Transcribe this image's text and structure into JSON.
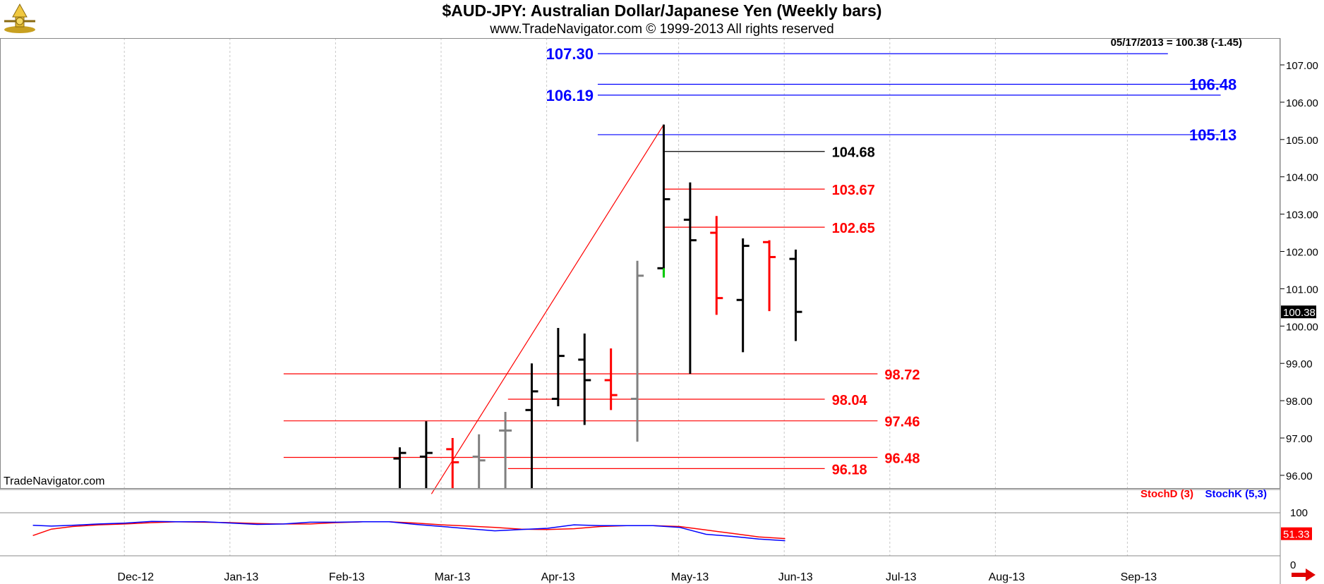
{
  "header": {
    "title": "$AUD-JPY:  Australian Dollar/Japanese Yen  (Weekly bars)",
    "subtitle": "www.TradeNavigator.com © 1999-2013 All rights reserved",
    "data_line": "05/17/2013 = 100.38 (-1.45)",
    "brand": "TradeNavigator.com"
  },
  "colors": {
    "up_bar": "#000000",
    "down_bar": "#ff0000",
    "neutral_bar": "#808080",
    "blue_level": "#0000ff",
    "red_level": "#ff0000",
    "black_level": "#000000",
    "stoch_d": "#ff0000",
    "stoch_k": "#0000ff",
    "grid": "#c8c8c8"
  },
  "chart_data": [
    {
      "type": "ohlc",
      "title": "$AUD-JPY:  Australian Dollar/Japanese Yen  (Weekly bars)",
      "ylim": [
        95.5,
        107.8
      ],
      "yticks": [
        "96.00",
        "97.00",
        "98.00",
        "99.00",
        "100.00",
        "101.00",
        "102.00",
        "103.00",
        "104.00",
        "105.00",
        "106.00",
        "107.00"
      ],
      "last_price": "100.38",
      "x_axis_labels": [
        {
          "label": "Dec-12",
          "week": 3
        },
        {
          "label": "Jan-13",
          "week": 7
        },
        {
          "label": "Feb-13",
          "week": 11
        },
        {
          "label": "Mar-13",
          "week": 15
        },
        {
          "label": "Apr-13",
          "week": 19
        },
        {
          "label": "May-13",
          "week": 24
        },
        {
          "label": "Jun-13",
          "week": 28
        },
        {
          "label": "Jul-13",
          "week": 32
        },
        {
          "label": "Aug-13",
          "week": 36
        },
        {
          "label": "Sep-13",
          "week": 41
        }
      ],
      "bars": [
        {
          "week": 12.9,
          "open": 96.45,
          "high": 96.75,
          "low": 95.5,
          "close": 96.6,
          "color": "up"
        },
        {
          "week": 13.9,
          "open": 96.5,
          "high": 97.45,
          "low": 95.5,
          "close": 96.6,
          "color": "up"
        },
        {
          "week": 14.9,
          "open": 96.7,
          "high": 97.0,
          "low": 95.5,
          "close": 96.35,
          "color": "down"
        },
        {
          "week": 15.9,
          "open": 96.5,
          "high": 97.1,
          "low": 95.5,
          "close": 96.4,
          "color": "neutral"
        },
        {
          "week": 16.9,
          "open": 97.2,
          "high": 97.7,
          "low": 95.5,
          "close": 97.2,
          "color": "neutral"
        },
        {
          "week": 17.9,
          "open": 97.75,
          "high": 99.0,
          "low": 95.5,
          "close": 98.25,
          "color": "up"
        },
        {
          "week": 18.9,
          "open": 98.05,
          "high": 99.95,
          "low": 97.85,
          "close": 99.2,
          "color": "up"
        },
        {
          "week": 19.9,
          "open": 99.1,
          "high": 99.8,
          "low": 97.35,
          "close": 98.55,
          "color": "up"
        },
        {
          "week": 20.9,
          "open": 98.55,
          "high": 99.4,
          "low": 97.75,
          "close": 98.15,
          "color": "down"
        },
        {
          "week": 21.9,
          "open": 98.05,
          "high": 101.75,
          "low": 96.9,
          "close": 101.35,
          "color": "neutral"
        },
        {
          "week": 22.9,
          "open": 101.55,
          "high": 105.4,
          "low": 101.35,
          "close": 103.4,
          "color": "up"
        },
        {
          "week": 23.9,
          "open": 102.85,
          "high": 103.85,
          "low": 98.72,
          "close": 102.3,
          "color": "up"
        },
        {
          "week": 24.9,
          "open": 102.5,
          "high": 102.95,
          "low": 100.3,
          "close": 100.75,
          "color": "down"
        },
        {
          "week": 25.9,
          "open": 100.7,
          "high": 102.35,
          "low": 99.3,
          "close": 102.15,
          "color": "up"
        },
        {
          "week": 26.9,
          "open": 102.25,
          "high": 102.3,
          "low": 100.4,
          "close": 101.85,
          "color": "down"
        },
        {
          "week": 27.9,
          "open": 101.8,
          "high": 102.05,
          "low": 99.6,
          "close": 100.38,
          "color": "up"
        }
      ],
      "trend_line": {
        "from": {
          "week": 14.1,
          "price": 95.5
        },
        "to": {
          "week": 22.9,
          "price": 105.4
        }
      },
      "levels": [
        {
          "label": "107.30",
          "price": 107.3,
          "color": "blue",
          "from_week": 20.4,
          "to_week": 42.0,
          "label_side": "left"
        },
        {
          "label": "106.48",
          "price": 106.48,
          "color": "blue",
          "from_week": 20.4,
          "to_week": 44.0,
          "label_side": "right"
        },
        {
          "label": "106.19",
          "price": 106.19,
          "color": "blue",
          "from_week": 20.4,
          "to_week": 44.0,
          "label_side": "left"
        },
        {
          "label": "105.13",
          "price": 105.13,
          "color": "blue",
          "from_week": 20.4,
          "to_week": 44.0,
          "label_side": "right"
        },
        {
          "label": "104.68",
          "price": 104.68,
          "color": "black",
          "from_week": 22.9,
          "to_week": 29.0,
          "label_side": "right"
        },
        {
          "label": "103.67",
          "price": 103.67,
          "color": "red",
          "from_week": 22.9,
          "to_week": 29.0,
          "label_side": "right"
        },
        {
          "label": "102.65",
          "price": 102.65,
          "color": "red",
          "from_week": 22.9,
          "to_week": 29.0,
          "label_side": "right"
        },
        {
          "label": "98.72",
          "price": 98.72,
          "color": "red",
          "from_week": 8.5,
          "to_week": 31.0,
          "label_side": "right"
        },
        {
          "label": "98.04",
          "price": 98.04,
          "color": "red",
          "from_week": 17.0,
          "to_week": 29.0,
          "label_side": "right"
        },
        {
          "label": "97.46",
          "price": 97.46,
          "color": "red",
          "from_week": 8.5,
          "to_week": 31.0,
          "label_side": "right"
        },
        {
          "label": "96.48",
          "price": 96.48,
          "color": "red",
          "from_week": 8.5,
          "to_week": 31.0,
          "label_side": "right"
        },
        {
          "label": "96.18",
          "price": 96.18,
          "color": "red",
          "from_week": 17.0,
          "to_week": 29.0,
          "label_side": "right"
        }
      ]
    },
    {
      "type": "line",
      "title": "",
      "ylim": [
        0,
        100
      ],
      "yticks": [
        "0",
        "100"
      ],
      "legend": [
        "StochD (3)",
        "StochK (5,3)"
      ],
      "x": [
        -1.0,
        -0.3,
        0.5,
        1.5,
        2.5,
        3.5,
        4.5,
        5.5,
        6.5,
        7.5,
        8.5,
        9.5,
        10.5,
        11.5,
        12.5,
        13.5,
        14.5,
        15.5,
        16.5,
        17.5,
        18.5,
        19.5,
        20.5,
        21.5,
        22.5,
        23.5,
        24.5,
        25.5,
        26.5,
        27.5
      ],
      "series": [
        {
          "name": "StochD (3)",
          "color": "red",
          "values": [
            47,
            62,
            68,
            72,
            74,
            77,
            79,
            78,
            77,
            75,
            74,
            74,
            77,
            79,
            79,
            76,
            72,
            69,
            66,
            62,
            61,
            63,
            68,
            70,
            70,
            68,
            60,
            52,
            44,
            40
          ]
        },
        {
          "name": "StochK (5,3)",
          "color": "blue",
          "values": [
            71,
            69,
            71,
            74,
            76,
            80,
            79,
            79,
            76,
            73,
            74,
            78,
            78,
            79,
            79,
            73,
            68,
            63,
            58,
            61,
            64,
            72,
            70,
            70,
            70,
            66,
            50,
            45,
            39,
            35
          ]
        }
      ],
      "last_values": [
        "51.33"
      ]
    }
  ]
}
